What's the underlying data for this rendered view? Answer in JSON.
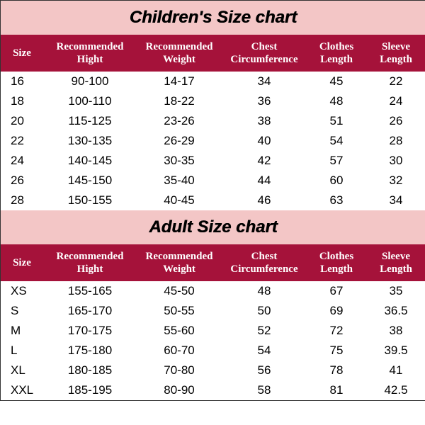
{
  "charts": [
    {
      "title": "Children's Size chart",
      "columns": [
        "Size",
        "Recommended Hight",
        "Recommended Weight",
        "Chest Circumference",
        "Clothes Length",
        "Sleeve Length"
      ],
      "rows": [
        [
          "16",
          "90-100",
          "14-17",
          "34",
          "45",
          "22"
        ],
        [
          "18",
          "100-110",
          "18-22",
          "36",
          "48",
          "24"
        ],
        [
          "20",
          "115-125",
          "23-26",
          "38",
          "51",
          "26"
        ],
        [
          "22",
          "130-135",
          "26-29",
          "40",
          "54",
          "28"
        ],
        [
          "24",
          "140-145",
          "30-35",
          "42",
          "57",
          "30"
        ],
        [
          "26",
          "145-150",
          "35-40",
          "44",
          "60",
          "32"
        ],
        [
          "28",
          "150-155",
          "40-45",
          "46",
          "63",
          "34"
        ]
      ]
    },
    {
      "title": "Adult Size chart",
      "columns": [
        "Size",
        "Recommended Hight",
        "Recommended Weight",
        "Chest Circumference",
        "Clothes Length",
        "Sleeve Length"
      ],
      "rows": [
        [
          "XS",
          "155-165",
          "45-50",
          "48",
          "67",
          "35"
        ],
        [
          "S",
          "165-170",
          "50-55",
          "50",
          "69",
          "36.5"
        ],
        [
          "M",
          "170-175",
          "55-60",
          "52",
          "72",
          "38"
        ],
        [
          "L",
          "175-180",
          "60-70",
          "54",
          "75",
          "39.5"
        ],
        [
          "XL",
          "180-185",
          "70-80",
          "56",
          "78",
          "41"
        ],
        [
          "XXL",
          "185-195",
          "80-90",
          "58",
          "81",
          "42.5"
        ]
      ]
    }
  ],
  "styling": {
    "outer_bg": "#f3c6c6",
    "header_bg": "#a5123a",
    "header_fg": "#ffffff",
    "cell_bg": "#ffffff",
    "cell_fg": "#000000",
    "title_color": "#000000",
    "title_fontsize": 24,
    "header_fontsize": 15,
    "cell_fontsize": 17,
    "col_widths_pct": [
      10,
      22,
      20,
      20,
      14,
      14
    ]
  }
}
